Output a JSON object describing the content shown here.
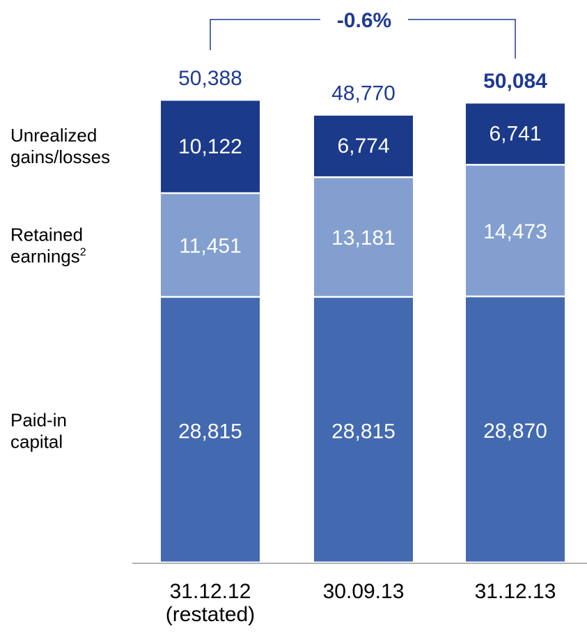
{
  "chart_data": {
    "type": "stacked_bar",
    "categories": [
      "31.12.12 (restated)",
      "30.09.13",
      "31.12.13"
    ],
    "series": [
      {
        "name": "Paid-in capital",
        "color": "#4369b0",
        "values": [
          28815,
          28815,
          28870
        ],
        "value_labels": [
          "28,815",
          "28,815",
          "28,870"
        ]
      },
      {
        "name": "Retained earnings",
        "name_superscript": "2",
        "color": "#829fcf",
        "values": [
          11451,
          13181,
          14473
        ],
        "value_labels": [
          "11,451",
          "13,181",
          "14,473"
        ]
      },
      {
        "name": "Unrealized gains/losses",
        "color": "#1b3a8a",
        "values": [
          10122,
          6774,
          6741
        ],
        "value_labels": [
          "10,122",
          "6,774",
          "6,741"
        ]
      }
    ],
    "totals": [
      50388,
      48770,
      50084
    ],
    "totals_labels": [
      "50,388",
      "48,770",
      "50,084"
    ],
    "bold_total_index": 2,
    "total_color": "#1f3a93",
    "annotation": "-0.6%",
    "ylim": [
      0,
      50388
    ]
  }
}
